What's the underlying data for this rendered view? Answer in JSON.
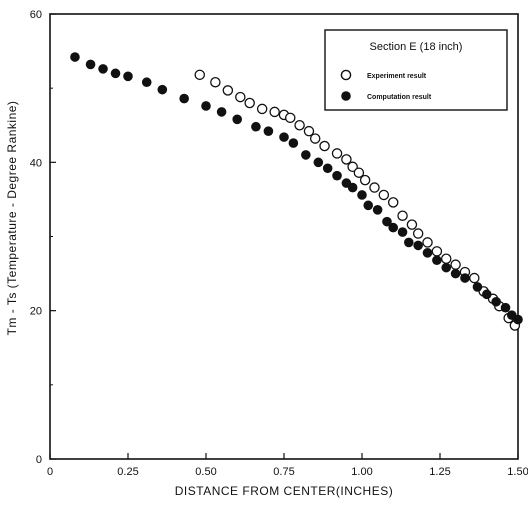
{
  "chart_data": {
    "type": "scatter",
    "title": "",
    "xlabel": "DISTANCE FROM CENTER(INCHES)",
    "ylabel": "Tm - Ts (Temperature - Degree Rankine)",
    "xlim": [
      0,
      1.5
    ],
    "ylim": [
      0,
      60
    ],
    "xticks": [
      0,
      0.25,
      0.5,
      0.75,
      1.0,
      1.25,
      1.5
    ],
    "xtick_labels": [
      "0",
      "0.25",
      "0.50",
      "0.75",
      "1.00",
      "1.25",
      "1.50"
    ],
    "yticks": [
      0,
      20,
      40,
      60
    ],
    "ytick_labels": [
      "0",
      "20",
      "40",
      "60"
    ],
    "grid": false,
    "legend": {
      "title": "Section E (18 inch)",
      "position": "top-right"
    },
    "series": [
      {
        "name": "Experiment result",
        "marker": "open-circle",
        "color": "#111111",
        "points": [
          [
            0.48,
            51.8
          ],
          [
            0.53,
            50.8
          ],
          [
            0.57,
            49.7
          ],
          [
            0.61,
            48.8
          ],
          [
            0.64,
            48.0
          ],
          [
            0.68,
            47.2
          ],
          [
            0.72,
            46.8
          ],
          [
            0.75,
            46.4
          ],
          [
            0.77,
            46.0
          ],
          [
            0.8,
            45.0
          ],
          [
            0.83,
            44.2
          ],
          [
            0.85,
            43.2
          ],
          [
            0.88,
            42.2
          ],
          [
            0.92,
            41.2
          ],
          [
            0.95,
            40.4
          ],
          [
            0.97,
            39.4
          ],
          [
            0.99,
            38.6
          ],
          [
            1.01,
            37.6
          ],
          [
            1.04,
            36.6
          ],
          [
            1.07,
            35.6
          ],
          [
            1.1,
            34.6
          ],
          [
            1.13,
            32.8
          ],
          [
            1.16,
            31.6
          ],
          [
            1.18,
            30.4
          ],
          [
            1.21,
            29.2
          ],
          [
            1.24,
            28.0
          ],
          [
            1.27,
            27.0
          ],
          [
            1.3,
            26.2
          ],
          [
            1.33,
            25.2
          ],
          [
            1.36,
            24.4
          ],
          [
            1.39,
            22.6
          ],
          [
            1.42,
            21.6
          ],
          [
            1.44,
            20.6
          ],
          [
            1.47,
            19.0
          ],
          [
            1.49,
            18.0
          ]
        ]
      },
      {
        "name": "Computation result",
        "marker": "filled-circle",
        "color": "#111111",
        "points": [
          [
            0.08,
            54.2
          ],
          [
            0.13,
            53.2
          ],
          [
            0.17,
            52.6
          ],
          [
            0.21,
            52.0
          ],
          [
            0.25,
            51.6
          ],
          [
            0.31,
            50.8
          ],
          [
            0.36,
            49.8
          ],
          [
            0.43,
            48.6
          ],
          [
            0.5,
            47.6
          ],
          [
            0.55,
            46.8
          ],
          [
            0.6,
            45.8
          ],
          [
            0.66,
            44.8
          ],
          [
            0.7,
            44.2
          ],
          [
            0.75,
            43.4
          ],
          [
            0.78,
            42.6
          ],
          [
            0.82,
            41.0
          ],
          [
            0.86,
            40.0
          ],
          [
            0.89,
            39.2
          ],
          [
            0.92,
            38.2
          ],
          [
            0.95,
            37.2
          ],
          [
            0.97,
            36.6
          ],
          [
            1.0,
            35.6
          ],
          [
            1.02,
            34.2
          ],
          [
            1.05,
            33.6
          ],
          [
            1.08,
            32.0
          ],
          [
            1.1,
            31.2
          ],
          [
            1.13,
            30.6
          ],
          [
            1.15,
            29.2
          ],
          [
            1.18,
            28.8
          ],
          [
            1.21,
            27.8
          ],
          [
            1.24,
            26.8
          ],
          [
            1.27,
            25.8
          ],
          [
            1.3,
            25.0
          ],
          [
            1.33,
            24.4
          ],
          [
            1.37,
            23.2
          ],
          [
            1.4,
            22.2
          ],
          [
            1.43,
            21.2
          ],
          [
            1.46,
            20.4
          ],
          [
            1.48,
            19.4
          ],
          [
            1.5,
            18.8
          ]
        ]
      }
    ]
  }
}
